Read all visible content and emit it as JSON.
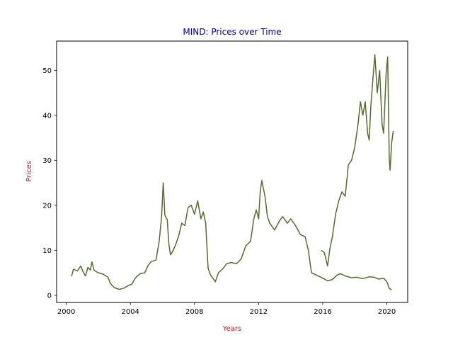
{
  "chart_data": {
    "type": "line",
    "title": "MIND: Prices over Time",
    "xlabel": "Years",
    "ylabel": "Prices",
    "xlim": [
      1999.4,
      2021.3
    ],
    "ylim": [
      -1.6,
      56.5
    ],
    "x_ticks": [
      "2000",
      "2004",
      "2008",
      "2012",
      "2016",
      "2020"
    ],
    "x_tick_values": [
      2000,
      2004,
      2008,
      2012,
      2016,
      2020
    ],
    "y_ticks": [
      "0",
      "10",
      "20",
      "30",
      "40",
      "50"
    ],
    "y_tick_values": [
      0,
      10,
      20,
      30,
      40,
      50
    ],
    "grid": false,
    "colors": {
      "title": "#00008b",
      "axis_label": "#b22222",
      "line": "#556b2f"
    },
    "series": [
      {
        "values": [
          [
            2000.33,
            4.2
          ],
          [
            2000.45,
            5.8
          ],
          [
            2000.7,
            5.4
          ],
          [
            2000.9,
            6.5
          ],
          [
            2001.05,
            5.2
          ],
          [
            2001.2,
            4.3
          ],
          [
            2001.35,
            6.2
          ],
          [
            2001.5,
            5.6
          ],
          [
            2001.6,
            7.4
          ],
          [
            2001.75,
            5.5
          ],
          [
            2002.0,
            5.0
          ],
          [
            2002.3,
            4.7
          ],
          [
            2002.6,
            4.0
          ],
          [
            2002.75,
            2.6
          ],
          [
            2003.0,
            1.7
          ],
          [
            2003.3,
            1.3
          ],
          [
            2003.6,
            1.6
          ],
          [
            2003.9,
            2.2
          ],
          [
            2004.1,
            2.5
          ],
          [
            2004.3,
            3.8
          ],
          [
            2004.6,
            4.8
          ],
          [
            2004.9,
            5.0
          ],
          [
            2005.1,
            6.6
          ],
          [
            2005.3,
            7.5
          ],
          [
            2005.6,
            7.8
          ],
          [
            2005.8,
            12.0
          ],
          [
            2005.95,
            17.5
          ],
          [
            2006.05,
            25.0
          ],
          [
            2006.15,
            17.8
          ],
          [
            2006.3,
            16.8
          ],
          [
            2006.4,
            11.5
          ],
          [
            2006.5,
            9.0
          ],
          [
            2006.6,
            9.5
          ],
          [
            2006.8,
            11.0
          ],
          [
            2007.0,
            13.0
          ],
          [
            2007.2,
            16.0
          ],
          [
            2007.4,
            15.5
          ],
          [
            2007.6,
            19.5
          ],
          [
            2007.8,
            20.0
          ],
          [
            2008.0,
            18.0
          ],
          [
            2008.2,
            21.0
          ],
          [
            2008.4,
            17.0
          ],
          [
            2008.55,
            18.5
          ],
          [
            2008.7,
            16.0
          ],
          [
            2008.85,
            6.0
          ],
          [
            2009.0,
            4.5
          ],
          [
            2009.2,
            3.5
          ],
          [
            2009.3,
            3.0
          ],
          [
            2009.5,
            5.0
          ],
          [
            2009.8,
            6.0
          ],
          [
            2010.0,
            7.0
          ],
          [
            2010.3,
            7.3
          ],
          [
            2010.6,
            7.0
          ],
          [
            2010.9,
            8.0
          ],
          [
            2011.2,
            11.0
          ],
          [
            2011.5,
            12.0
          ],
          [
            2011.7,
            17.0
          ],
          [
            2011.85,
            19.0
          ],
          [
            2012.0,
            17.0
          ],
          [
            2012.1,
            23.0
          ],
          [
            2012.2,
            25.5
          ],
          [
            2012.4,
            22.0
          ],
          [
            2012.55,
            17.5
          ],
          [
            2012.7,
            16.0
          ],
          [
            2013.0,
            14.5
          ],
          [
            2013.3,
            16.5
          ],
          [
            2013.5,
            17.5
          ],
          [
            2013.8,
            16.0
          ],
          [
            2014.0,
            17.0
          ],
          [
            2014.3,
            15.5
          ],
          [
            2014.6,
            13.5
          ],
          [
            2014.9,
            13.0
          ],
          [
            2015.1,
            10.0
          ],
          [
            2015.3,
            5.0
          ],
          [
            2015.6,
            4.5
          ],
          [
            2016.0,
            3.8
          ],
          [
            2016.3,
            3.2
          ],
          [
            2016.6,
            3.5
          ],
          [
            2016.9,
            4.5
          ],
          [
            2017.1,
            4.8
          ],
          [
            2017.4,
            4.3
          ],
          [
            2017.8,
            3.9
          ],
          [
            2018.1,
            4.0
          ],
          [
            2018.5,
            3.7
          ],
          [
            2018.9,
            4.1
          ],
          [
            2019.2,
            4.0
          ],
          [
            2019.5,
            3.6
          ],
          [
            2019.8,
            3.8
          ],
          [
            2020.0,
            3.0
          ],
          [
            2020.15,
            1.5
          ],
          [
            2020.3,
            1.2
          ]
        ]
      },
      {
        "values": [
          [
            2015.9,
            10.0
          ],
          [
            2016.1,
            9.5
          ],
          [
            2016.3,
            6.5
          ],
          [
            2016.45,
            10.5
          ],
          [
            2016.6,
            13.0
          ],
          [
            2016.8,
            18.0
          ],
          [
            2017.0,
            21.0
          ],
          [
            2017.2,
            23.0
          ],
          [
            2017.4,
            22.0
          ],
          [
            2017.6,
            29.0
          ],
          [
            2017.8,
            30.0
          ],
          [
            2018.0,
            33.0
          ],
          [
            2018.2,
            38.0
          ],
          [
            2018.35,
            43.0
          ],
          [
            2018.5,
            40.0
          ],
          [
            2018.65,
            43.0
          ],
          [
            2018.8,
            36.0
          ],
          [
            2018.9,
            34.5
          ],
          [
            2019.0,
            42.0
          ],
          [
            2019.15,
            49.0
          ],
          [
            2019.25,
            53.5
          ],
          [
            2019.4,
            45.0
          ],
          [
            2019.55,
            50.0
          ],
          [
            2019.7,
            38.0
          ],
          [
            2019.8,
            36.0
          ],
          [
            2019.95,
            49.0
          ],
          [
            2020.05,
            53.0
          ],
          [
            2020.15,
            30.0
          ],
          [
            2020.2,
            27.8
          ],
          [
            2020.3,
            34.0
          ],
          [
            2020.4,
            36.5
          ]
        ]
      }
    ]
  }
}
